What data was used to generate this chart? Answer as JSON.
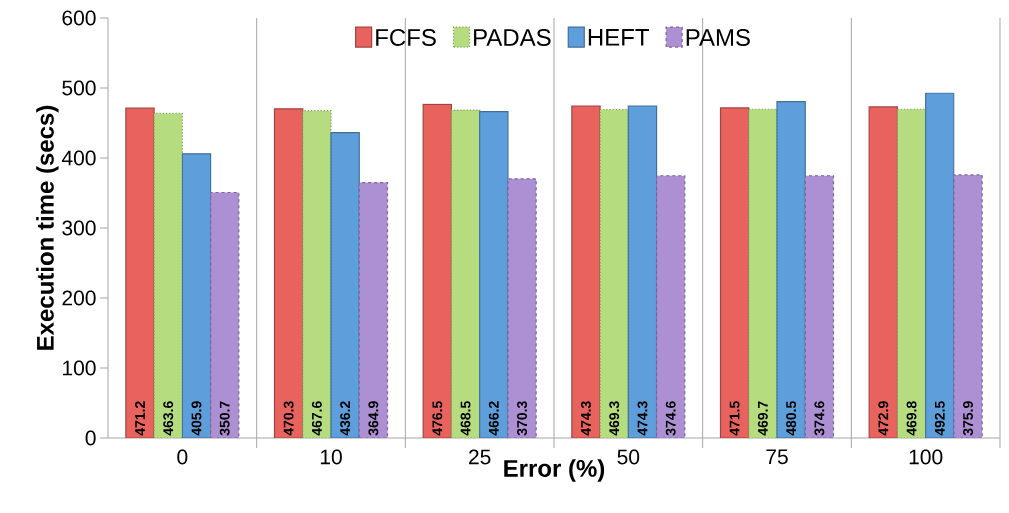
{
  "chart_data": {
    "type": "bar",
    "xlabel": "Error (%)",
    "ylabel": "Execution time (secs)",
    "categories": [
      "0",
      "10",
      "25",
      "50",
      "75",
      "100"
    ],
    "series": [
      {
        "name": "FCFS",
        "color": "#e8625e",
        "values": [
          471.2,
          470.3,
          476.5,
          474.3,
          471.5,
          472.9
        ]
      },
      {
        "name": "PADAS",
        "color": "#b6dc80",
        "values": [
          463.6,
          467.6,
          468.5,
          469.3,
          469.7,
          469.8
        ],
        "line_style": "dotted"
      },
      {
        "name": "HEFT",
        "color": "#5e9edb",
        "values": [
          405.9,
          436.2,
          466.2,
          474.3,
          480.5,
          492.5
        ]
      },
      {
        "name": "PAMS",
        "color": "#ad90d4",
        "values": [
          350.7,
          364.9,
          370.3,
          374.6,
          374.6,
          375.9
        ],
        "line_style": "dashed"
      }
    ],
    "ylim": [
      0,
      600
    ],
    "yticks": [
      0,
      100,
      200,
      300,
      400,
      500,
      600
    ],
    "grid": "x",
    "legend": "top",
    "data_labels": true
  }
}
